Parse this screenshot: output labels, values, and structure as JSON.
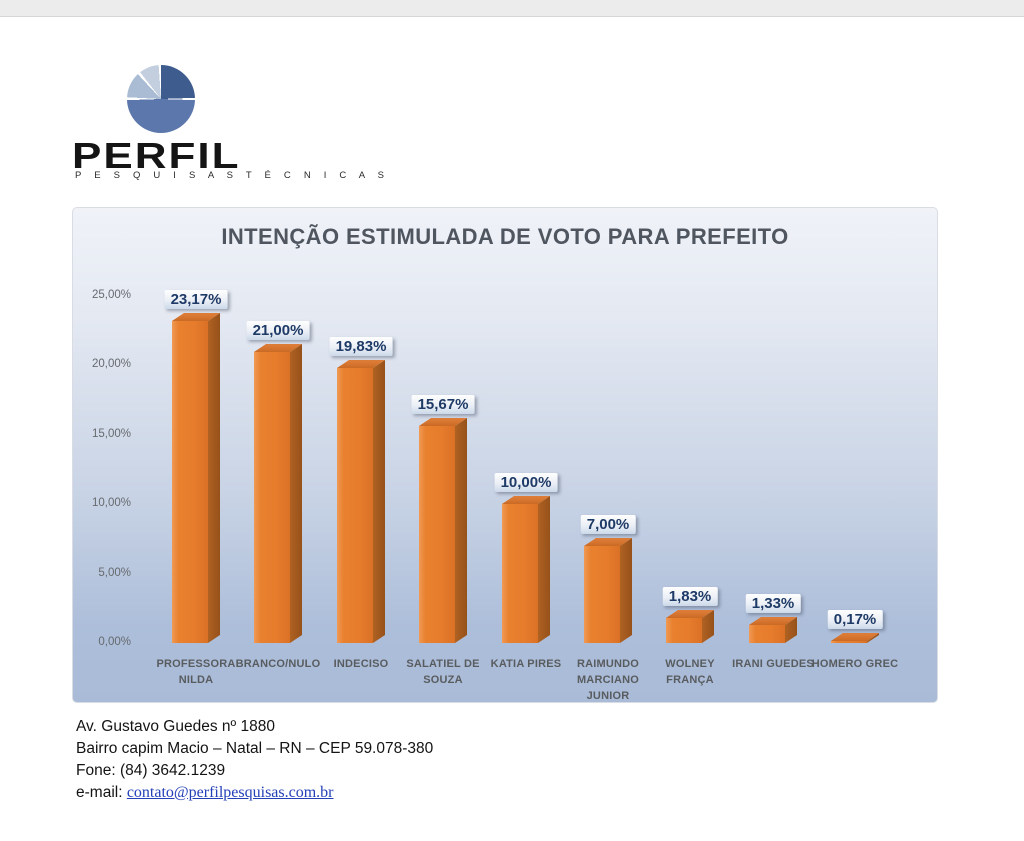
{
  "logo": {
    "brand": "PERFIL",
    "tagline": "P E S Q U I S A S   T É C N I C A S",
    "pie_slice_colors": [
      "#3e5c8e",
      "#5c77ac",
      "#a9bcd3",
      "#c3cfdf"
    ]
  },
  "chart_data": {
    "type": "bar",
    "title": "INTENÇÃO ESTIMULADA DE VOTO PARA PREFEITO",
    "categories": [
      [
        "PROFESSORA",
        "NILDA"
      ],
      [
        "BRANCO/NULO"
      ],
      [
        "INDECISO"
      ],
      [
        "SALATIEL DE",
        "SOUZA"
      ],
      [
        "KATIA PIRES"
      ],
      [
        "RAIMUNDO",
        "MARCIANO",
        "JUNIOR"
      ],
      [
        "WOLNEY",
        "FRANÇA"
      ],
      [
        "IRANI GUEDES"
      ],
      [
        "HOMERO GREC"
      ]
    ],
    "values": [
      23.17,
      21.0,
      19.83,
      15.67,
      10.0,
      7.0,
      1.83,
      1.33,
      0.17
    ],
    "value_labels": [
      "23,17%",
      "21,00%",
      "19,83%",
      "15,67%",
      "10,00%",
      "7,00%",
      "1,83%",
      "1,33%",
      "0,17%"
    ],
    "y_ticks": [
      {
        "label": "25,00%",
        "value": 25
      },
      {
        "label": "20,00%",
        "value": 20
      },
      {
        "label": "15,00%",
        "value": 15
      },
      {
        "label": "10,00%",
        "value": 10
      },
      {
        "label": "5,00%",
        "value": 5
      },
      {
        "label": "0,00%",
        "value": 0
      }
    ],
    "ylim": [
      0,
      25
    ],
    "grid": false,
    "legend": false,
    "bar_color": "#e67c2c",
    "bar_side_color": "#96511a",
    "bar_top_color": "#c96a24",
    "value_label_text_color": "#1e3a66",
    "panel_bg_top": "#f0f2f8",
    "panel_bg_bottom": "#a9bbd7"
  },
  "footer": {
    "address_line1": "Av. Gustavo Guedes nº 1880",
    "address_line2": "Bairro capim  Macio – Natal – RN – CEP 59.078-380",
    "phone": "Fone: (84) 3642.1239",
    "email_label": "e-mail: ",
    "email": "contato@perfilpesquisas.com.br"
  }
}
